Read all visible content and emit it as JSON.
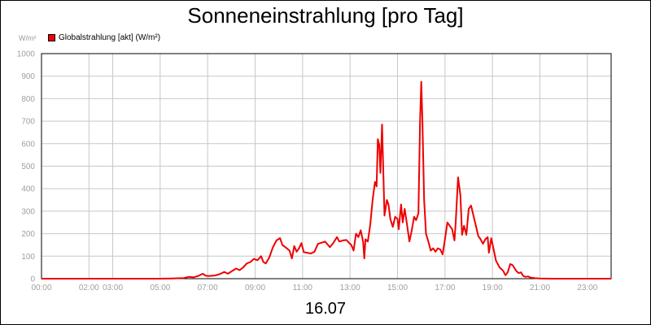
{
  "chart_data": {
    "type": "line",
    "title": "Sonneneinstrahlung [pro Tag]",
    "unit_label": "W/m²",
    "date_label": "16.07",
    "xlim": [
      0,
      24
    ],
    "ylim": [
      0,
      1000
    ],
    "grid": true,
    "legend_position": "top-left",
    "y_ticks": [
      0,
      100,
      200,
      300,
      400,
      500,
      600,
      700,
      800,
      900,
      1000
    ],
    "x_ticks": [
      {
        "value": 0,
        "label": "00:00"
      },
      {
        "value": 2,
        "label": "02:00"
      },
      {
        "value": 3,
        "label": "03:00"
      },
      {
        "value": 5,
        "label": "05:00"
      },
      {
        "value": 7,
        "label": "07:00"
      },
      {
        "value": 9,
        "label": "09:00"
      },
      {
        "value": 11,
        "label": "11:00"
      },
      {
        "value": 13,
        "label": "13:00"
      },
      {
        "value": 15,
        "label": "15:00"
      },
      {
        "value": 17,
        "label": "17:00"
      },
      {
        "value": 19,
        "label": "19:00"
      },
      {
        "value": 21,
        "label": "21:00"
      },
      {
        "value": 23,
        "label": "23:00"
      }
    ],
    "series": [
      {
        "name": "Globalstrahlung [akt] (W/m²)",
        "color": "#ee0000",
        "points": [
          [
            0,
            0
          ],
          [
            5.0,
            0
          ],
          [
            5.5,
            1
          ],
          [
            5.8,
            2
          ],
          [
            6.0,
            3
          ],
          [
            6.2,
            8
          ],
          [
            6.4,
            6
          ],
          [
            6.6,
            12
          ],
          [
            6.8,
            22
          ],
          [
            6.9,
            14
          ],
          [
            7.0,
            12
          ],
          [
            7.3,
            14
          ],
          [
            7.5,
            20
          ],
          [
            7.7,
            30
          ],
          [
            7.85,
            22
          ],
          [
            8.0,
            32
          ],
          [
            8.2,
            45
          ],
          [
            8.35,
            38
          ],
          [
            8.5,
            50
          ],
          [
            8.65,
            68
          ],
          [
            8.8,
            74
          ],
          [
            8.95,
            88
          ],
          [
            9.1,
            82
          ],
          [
            9.25,
            100
          ],
          [
            9.35,
            74
          ],
          [
            9.45,
            68
          ],
          [
            9.6,
            95
          ],
          [
            9.75,
            140
          ],
          [
            9.9,
            170
          ],
          [
            10.05,
            180
          ],
          [
            10.15,
            150
          ],
          [
            10.3,
            138
          ],
          [
            10.45,
            125
          ],
          [
            10.55,
            90
          ],
          [
            10.65,
            145
          ],
          [
            10.75,
            120
          ],
          [
            10.85,
            135
          ],
          [
            10.95,
            158
          ],
          [
            11.05,
            118
          ],
          [
            11.2,
            115
          ],
          [
            11.35,
            112
          ],
          [
            11.5,
            120
          ],
          [
            11.65,
            155
          ],
          [
            11.8,
            160
          ],
          [
            11.95,
            165
          ],
          [
            12.05,
            152
          ],
          [
            12.15,
            140
          ],
          [
            12.3,
            160
          ],
          [
            12.45,
            185
          ],
          [
            12.55,
            165
          ],
          [
            12.7,
            170
          ],
          [
            12.85,
            172
          ],
          [
            12.95,
            160
          ],
          [
            13.05,
            150
          ],
          [
            13.15,
            125
          ],
          [
            13.25,
            200
          ],
          [
            13.35,
            185
          ],
          [
            13.45,
            215
          ],
          [
            13.55,
            165
          ],
          [
            13.6,
            90
          ],
          [
            13.65,
            175
          ],
          [
            13.75,
            165
          ],
          [
            13.85,
            240
          ],
          [
            13.95,
            350
          ],
          [
            14.05,
            430
          ],
          [
            14.12,
            410
          ],
          [
            14.17,
            620
          ],
          [
            14.23,
            595
          ],
          [
            14.28,
            470
          ],
          [
            14.35,
            685
          ],
          [
            14.45,
            280
          ],
          [
            14.55,
            350
          ],
          [
            14.62,
            330
          ],
          [
            14.7,
            265
          ],
          [
            14.8,
            230
          ],
          [
            14.9,
            275
          ],
          [
            15.0,
            265
          ],
          [
            15.05,
            220
          ],
          [
            15.15,
            330
          ],
          [
            15.22,
            250
          ],
          [
            15.3,
            310
          ],
          [
            15.4,
            240
          ],
          [
            15.5,
            165
          ],
          [
            15.6,
            215
          ],
          [
            15.7,
            275
          ],
          [
            15.78,
            260
          ],
          [
            15.88,
            290
          ],
          [
            15.95,
            700
          ],
          [
            16.0,
            875
          ],
          [
            16.05,
            700
          ],
          [
            16.12,
            350
          ],
          [
            16.2,
            200
          ],
          [
            16.3,
            165
          ],
          [
            16.4,
            125
          ],
          [
            16.5,
            135
          ],
          [
            16.6,
            120
          ],
          [
            16.7,
            135
          ],
          [
            16.8,
            130
          ],
          [
            16.9,
            108
          ],
          [
            17.0,
            175
          ],
          [
            17.1,
            250
          ],
          [
            17.2,
            235
          ],
          [
            17.3,
            220
          ],
          [
            17.4,
            170
          ],
          [
            17.45,
            250
          ],
          [
            17.55,
            450
          ],
          [
            17.65,
            370
          ],
          [
            17.72,
            195
          ],
          [
            17.8,
            235
          ],
          [
            17.9,
            195
          ],
          [
            18.0,
            310
          ],
          [
            18.1,
            325
          ],
          [
            18.2,
            280
          ],
          [
            18.3,
            235
          ],
          [
            18.4,
            190
          ],
          [
            18.5,
            175
          ],
          [
            18.6,
            155
          ],
          [
            18.7,
            175
          ],
          [
            18.8,
            185
          ],
          [
            18.85,
            115
          ],
          [
            18.95,
            180
          ],
          [
            19.05,
            130
          ],
          [
            19.15,
            80
          ],
          [
            19.3,
            50
          ],
          [
            19.45,
            35
          ],
          [
            19.55,
            15
          ],
          [
            19.65,
            30
          ],
          [
            19.75,
            65
          ],
          [
            19.85,
            60
          ],
          [
            20.0,
            35
          ],
          [
            20.1,
            25
          ],
          [
            20.2,
            28
          ],
          [
            20.3,
            12
          ],
          [
            20.4,
            8
          ],
          [
            20.5,
            10
          ],
          [
            20.6,
            5
          ],
          [
            20.8,
            2
          ],
          [
            21.0,
            1
          ],
          [
            21.5,
            0
          ],
          [
            24,
            0
          ]
        ]
      }
    ]
  }
}
